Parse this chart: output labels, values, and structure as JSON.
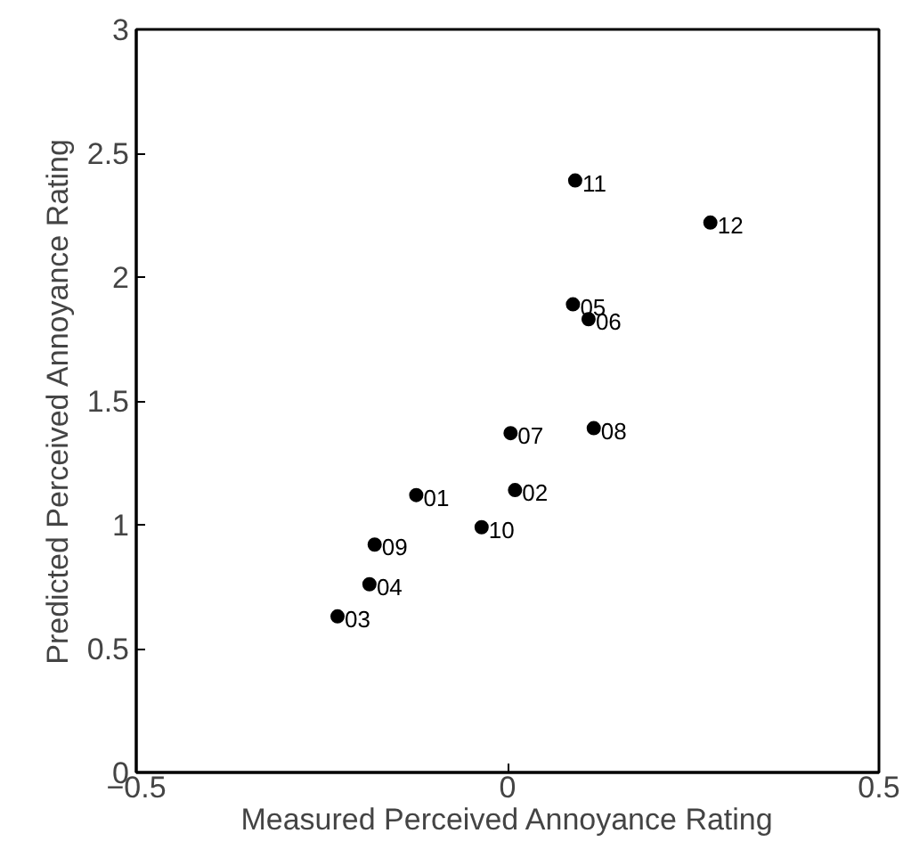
{
  "chart_data": {
    "type": "scatter",
    "xlabel": "Measured Perceived Annoyance Rating",
    "ylabel": "Predicted Perceived Annoyance Rating",
    "x": [
      -0.123,
      0.01,
      -0.229,
      -0.186,
      0.088,
      0.109,
      0.004,
      0.116,
      -0.179,
      -0.035,
      0.091,
      0.273
    ],
    "series": [
      {
        "color": "#000000",
        "values": [
          1.12,
          1.14,
          0.63,
          0.76,
          1.89,
          1.83,
          1.37,
          1.39,
          0.92,
          0.99,
          2.39,
          2.22
        ]
      }
    ],
    "annotations": [
      {
        "text": "01",
        "x": -0.123,
        "y": 1.12
      },
      {
        "text": "02",
        "x": 0.01,
        "y": 1.14
      },
      {
        "text": "03",
        "x": -0.229,
        "y": 0.63
      },
      {
        "text": "04",
        "x": -0.186,
        "y": 0.76
      },
      {
        "text": "05",
        "x": 0.088,
        "y": 1.89
      },
      {
        "text": "06",
        "x": 0.109,
        "y": 1.83
      },
      {
        "text": "07",
        "x": 0.004,
        "y": 1.37
      },
      {
        "text": "08",
        "x": 0.116,
        "y": 1.39
      },
      {
        "text": "09",
        "x": -0.179,
        "y": 0.92
      },
      {
        "text": "10",
        "x": -0.035,
        "y": 0.99
      },
      {
        "text": "11",
        "x": 0.091,
        "y": 2.39
      },
      {
        "text": "12",
        "x": 0.273,
        "y": 2.22
      }
    ],
    "xlim": [
      -0.5,
      0.5
    ],
    "xticks": [
      {
        "value": -0.5,
        "label": "−0.5"
      },
      0,
      0.5
    ],
    "ylim": [
      0,
      3
    ],
    "yticks": [
      0,
      0.5,
      1,
      1.5,
      2,
      2.5,
      3
    ],
    "grid": false,
    "marker": "circle"
  }
}
